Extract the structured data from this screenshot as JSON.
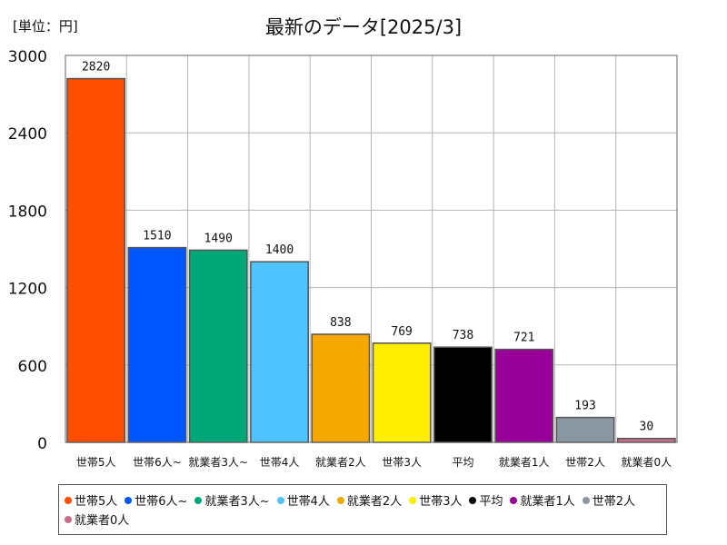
{
  "chart_data": {
    "type": "bar",
    "title": "最新のデータ[2025/3]",
    "unit_label": "[単位：円]",
    "categories": [
      "世帯5人",
      "世帯6人~",
      "就業者3人~",
      "世帯4人",
      "就業者2人",
      "世帯3人",
      "平均",
      "就業者1人",
      "世帯2人",
      "就業者0人"
    ],
    "values": [
      2820,
      1510,
      1490,
      1400,
      838,
      769,
      738,
      721,
      193,
      30
    ],
    "colors": [
      "#ff4e00",
      "#0057ff",
      "#00a878",
      "#4fc3ff",
      "#f5a800",
      "#ffee00",
      "#000000",
      "#990099",
      "#8a96a0",
      "#c86e8c"
    ],
    "ylim": [
      0,
      3000
    ],
    "yticks": [
      "0",
      "600",
      "1200",
      "1800",
      "2400",
      "3000"
    ],
    "grid": true,
    "legend": "bottom",
    "xlabel": "",
    "ylabel": ""
  }
}
